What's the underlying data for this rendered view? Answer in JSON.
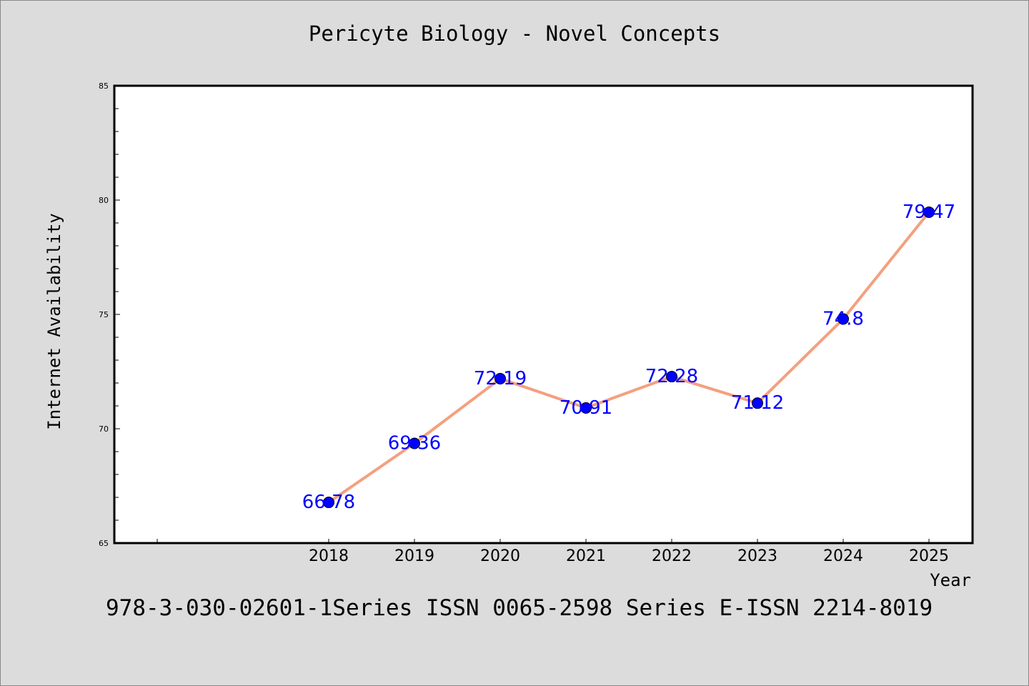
{
  "chart_data": {
    "type": "line",
    "title": "Pericyte Biology - Novel Concepts",
    "xlabel": "Year",
    "ylabel": "Internet Availability",
    "categories": [
      "2018",
      "2019",
      "2020",
      "2021",
      "2022",
      "2023",
      "2024",
      "2025"
    ],
    "values": [
      66.78,
      69.36,
      72.19,
      70.91,
      72.28,
      71.12,
      74.8,
      79.47
    ],
    "data_labels": [
      "66.78",
      "69.36",
      "72.19",
      "70.91",
      "72.28",
      "71.12",
      "74.8",
      "79.47"
    ],
    "ylim": [
      65,
      85
    ],
    "yticks": [
      65,
      70,
      75,
      80,
      85
    ],
    "grid": false,
    "line_color": "#f4a07e",
    "marker_color": "#0000ff",
    "label_color": "#0000ff"
  },
  "footer": "978-3-030-02601-1Series ISSN 0065-2598 Series E-ISSN 2214-8019"
}
